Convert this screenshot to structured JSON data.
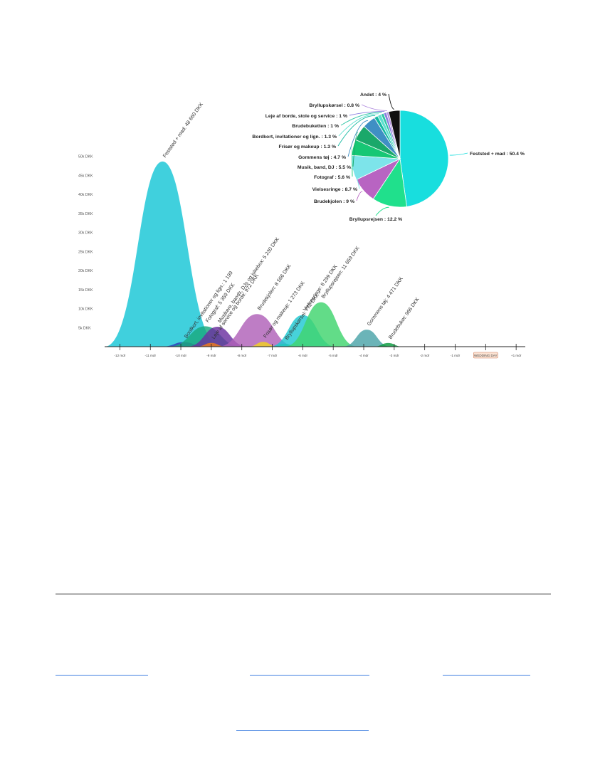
{
  "chart_data": [
    {
      "type": "area",
      "y_tick_labels": [
        "5k DKK",
        "10k DKK",
        "15k DKK",
        "20k DKK",
        "25k DKK",
        "30k DKK",
        "35k DKK",
        "40k DKK",
        "45k DKK",
        "50k DKK"
      ],
      "y_tick_values": [
        5000,
        10000,
        15000,
        20000,
        25000,
        30000,
        35000,
        40000,
        45000,
        50000
      ],
      "ylim": [
        0,
        52000
      ],
      "x_tick_labels": [
        "-12 mdr",
        "-11 mdr",
        "-10 mdr",
        "-9 mdr",
        "-8 mdr",
        "-7 mdr",
        "-6 mdr",
        "-5 mdr",
        "-4 mdr",
        "-3 mdr",
        "-2 mdr",
        "-1 mdr",
        "WEDDING DAY",
        "+1 mdr"
      ],
      "x_tick_values": [
        -12,
        -11,
        -10,
        -9,
        -8,
        -7,
        -6,
        -5,
        -4,
        -3,
        -2,
        -1,
        0,
        1
      ],
      "xlim": [
        -12.5,
        1.3
      ],
      "highlight_tick": "WEDDING DAY",
      "series": [
        {
          "name": "Feststed + mad",
          "label": "Feststed + mad: 48 660 DKK",
          "center": -10.6,
          "halfwidth": 1.9,
          "value": 48660,
          "color": "#16c6d6"
        },
        {
          "name": "Bordkort, invitationer og lign.",
          "label": "Bordkort, invitationer og lign.: 1 199",
          "center": -9.9,
          "halfwidth": 0.75,
          "value": 1199,
          "color": "#2f3ab4"
        },
        {
          "name": "Fotograf",
          "label": "Fotograf: 5 359 DKK",
          "center": -9.2,
          "halfwidth": 1.2,
          "value": 5359,
          "color": "#1aa87e"
        },
        {
          "name": "Musikere, bands, DJs og jukebox",
          "label": "Musikere, bands, DJs og jukebox: 5 230 DKK",
          "center": -8.8,
          "halfwidth": 1.0,
          "value": 5230,
          "color": "#6a2fa0"
        },
        {
          "name": "Leje af service og borde",
          "label": "Leje af service og borde: 972 DKK",
          "center": -9.0,
          "halfwidth": 0.5,
          "value": 972,
          "color": "#f07a1a"
        },
        {
          "name": "Brudekjolen",
          "label": "Brudekjolen: 8 566 DKK",
          "center": -7.5,
          "halfwidth": 1.3,
          "value": 8566,
          "color": "#b060b8"
        },
        {
          "name": "Frisør og makeup",
          "label": "Frisør og makeup: 1 273 DKK",
          "center": -7.3,
          "halfwidth": 0.5,
          "value": 1273,
          "color": "#f1d21e"
        },
        {
          "name": "Bryllupskørsel",
          "label": "Bryllupskørsel: 772 DKK",
          "center": -6.6,
          "halfwidth": 0.45,
          "value": 772,
          "color": "#22c455"
        },
        {
          "name": "Vielsesringe",
          "label": "Vielsesringe: 8 299 DKK",
          "center": -6.0,
          "halfwidth": 1.1,
          "value": 8299,
          "color": "#1fc8d2"
        },
        {
          "name": "Bryllupsrejsen",
          "label": "Bryllupsrejsen: 11 659 DKK",
          "center": -5.4,
          "halfwidth": 1.2,
          "value": 11659,
          "color": "#3fd46e"
        },
        {
          "name": "Gommens tøj",
          "label": "Gommens tøj: 4 471 DKK",
          "center": -3.9,
          "halfwidth": 0.8,
          "value": 4471,
          "color": "#4aa3a8"
        },
        {
          "name": "Brudebuket",
          "label": "Brudebuket: 966 DKK",
          "center": -3.2,
          "halfwidth": 0.5,
          "value": 966,
          "color": "#0b9a3e"
        }
      ]
    },
    {
      "type": "pie",
      "slices": [
        {
          "name": "Feststed + mad",
          "label": "Feststed + mad : 50.4 %",
          "value": 50.4,
          "color": "#18dede"
        },
        {
          "name": "Bryllupsrejsen",
          "label": "Bryllupsrejsen : 12.2 %",
          "value": 12.2,
          "color": "#20e08c"
        },
        {
          "name": "Brudekjolen",
          "label": "Brudekjolen : 9 %",
          "value": 9,
          "color": "#b864c2"
        },
        {
          "name": "Vielsesringe",
          "label": "Vielsesringe : 8.7 %",
          "value": 8.7,
          "color": "#7de4ea"
        },
        {
          "name": "Fotograf",
          "label": "Fotograf : 5.6 %",
          "value": 5.6,
          "color": "#16c774"
        },
        {
          "name": "Musik, band, DJ",
          "label": "Musik, band, DJ : 5.5 %",
          "value": 5.5,
          "color": "#1aa86a"
        },
        {
          "name": "Gommens tøj",
          "label": "Gommens tøj : 4.7 %",
          "value": 4.7,
          "color": "#3f8fc4"
        },
        {
          "name": "Frisør og makeup",
          "label": "Frisør og makeup : 1.3 %",
          "value": 1.3,
          "color": "#13b8a0"
        },
        {
          "name": "Bordkort, invitationer og lign.",
          "label": "Bordkort, invitationer og lign. : 1.3 %",
          "value": 1.3,
          "color": "#5ee0d0"
        },
        {
          "name": "Brudebuketten",
          "label": "Brudebuketten : 1 %",
          "value": 1,
          "color": "#2fc5a5"
        },
        {
          "name": "Leje af borde, stole og service",
          "label": "Leje af borde, stole og service : 1 %",
          "value": 1,
          "color": "#8a7fe0"
        },
        {
          "name": "Bryllupskørsel",
          "label": "Bryllupskørsel : 0.8 %",
          "value": 0.8,
          "color": "#b490e0"
        },
        {
          "name": "Andet",
          "label": "Andet : 4 %",
          "value": 4,
          "color": "#101010"
        }
      ]
    }
  ]
}
